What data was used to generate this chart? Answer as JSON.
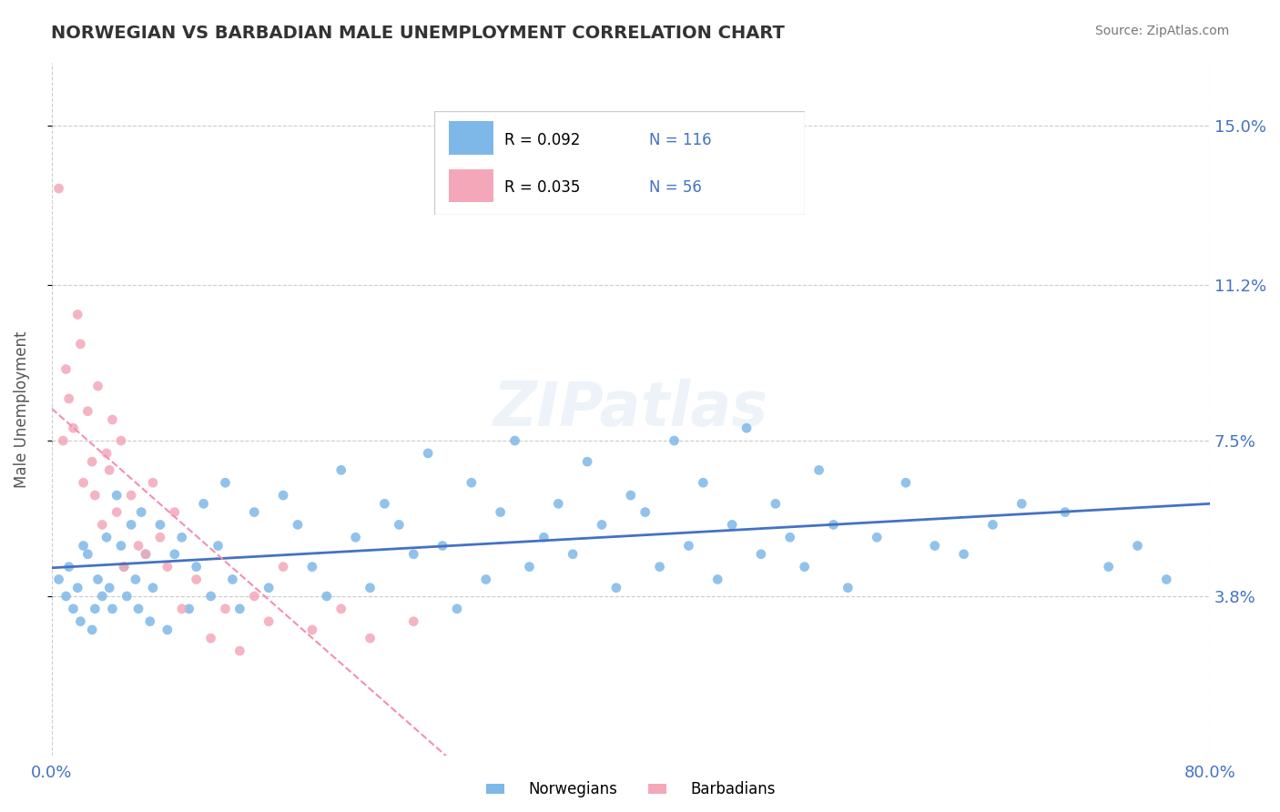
{
  "title": "NORWEGIAN VS BARBADIAN MALE UNEMPLOYMENT CORRELATION CHART",
  "source": "Source: ZipAtlas.com",
  "xlabel": "",
  "ylabel": "Male Unemployment",
  "xlim": [
    0.0,
    80.0
  ],
  "ylim": [
    0.0,
    16.5
  ],
  "yticks": [
    3.8,
    7.5,
    11.2,
    15.0
  ],
  "xticks": [
    0.0,
    20.0,
    40.0,
    60.0,
    80.0
  ],
  "xtick_labels": [
    "0.0%",
    "",
    "",
    "",
    "80.0%"
  ],
  "ytick_labels": [
    "3.8%",
    "7.5%",
    "11.2%",
    "15.0%"
  ],
  "norwegian_color": "#7EB8E8",
  "barbadian_color": "#F4A7B9",
  "trend_norwegian_color": "#4472C4",
  "trend_barbadian_color": "#F48FB1",
  "legend_r1": "R = 0.092",
  "legend_n1": "N = 116",
  "legend_r2": "R = 0.035",
  "legend_n2": "N = 56",
  "legend_label1": "Norwegians",
  "legend_label2": "Barbadians",
  "r_value_color": "#4472C4",
  "background_color": "#FFFFFF",
  "grid_color": "#CCCCCC",
  "watermark": "ZIPatlas",
  "norwegian_x": [
    0.5,
    1.0,
    1.2,
    1.5,
    1.8,
    2.0,
    2.2,
    2.5,
    2.8,
    3.0,
    3.2,
    3.5,
    3.8,
    4.0,
    4.2,
    4.5,
    4.8,
    5.0,
    5.2,
    5.5,
    5.8,
    6.0,
    6.2,
    6.5,
    6.8,
    7.0,
    7.5,
    8.0,
    8.5,
    9.0,
    9.5,
    10.0,
    10.5,
    11.0,
    11.5,
    12.0,
    12.5,
    13.0,
    14.0,
    15.0,
    16.0,
    17.0,
    18.0,
    19.0,
    20.0,
    21.0,
    22.0,
    23.0,
    24.0,
    25.0,
    26.0,
    27.0,
    28.0,
    29.0,
    30.0,
    31.0,
    32.0,
    33.0,
    34.0,
    35.0,
    36.0,
    37.0,
    38.0,
    39.0,
    40.0,
    41.0,
    42.0,
    43.0,
    44.0,
    45.0,
    46.0,
    47.0,
    48.0,
    49.0,
    50.0,
    51.0,
    52.0,
    53.0,
    54.0,
    55.0,
    57.0,
    59.0,
    61.0,
    63.0,
    65.0,
    67.0,
    70.0,
    73.0,
    75.0,
    77.0
  ],
  "norwegian_y": [
    4.2,
    3.8,
    4.5,
    3.5,
    4.0,
    3.2,
    5.0,
    4.8,
    3.0,
    3.5,
    4.2,
    3.8,
    5.2,
    4.0,
    3.5,
    6.2,
    5.0,
    4.5,
    3.8,
    5.5,
    4.2,
    3.5,
    5.8,
    4.8,
    3.2,
    4.0,
    5.5,
    3.0,
    4.8,
    5.2,
    3.5,
    4.5,
    6.0,
    3.8,
    5.0,
    6.5,
    4.2,
    3.5,
    5.8,
    4.0,
    6.2,
    5.5,
    4.5,
    3.8,
    6.8,
    5.2,
    4.0,
    6.0,
    5.5,
    4.8,
    7.2,
    5.0,
    3.5,
    6.5,
    4.2,
    5.8,
    7.5,
    4.5,
    5.2,
    6.0,
    4.8,
    7.0,
    5.5,
    4.0,
    6.2,
    5.8,
    4.5,
    7.5,
    5.0,
    6.5,
    4.2,
    5.5,
    7.8,
    4.8,
    6.0,
    5.2,
    4.5,
    6.8,
    5.5,
    4.0,
    5.2,
    6.5,
    5.0,
    4.8,
    5.5,
    6.0,
    5.8,
    4.5,
    5.0,
    4.2
  ],
  "barbadian_x": [
    0.5,
    0.8,
    1.0,
    1.2,
    1.5,
    1.8,
    2.0,
    2.2,
    2.5,
    2.8,
    3.0,
    3.2,
    3.5,
    3.8,
    4.0,
    4.2,
    4.5,
    4.8,
    5.0,
    5.5,
    6.0,
    6.5,
    7.0,
    7.5,
    8.0,
    8.5,
    9.0,
    10.0,
    11.0,
    12.0,
    13.0,
    14.0,
    15.0,
    16.0,
    18.0,
    20.0,
    22.0,
    25.0
  ],
  "barbadian_y": [
    13.5,
    7.5,
    9.2,
    8.5,
    7.8,
    10.5,
    9.8,
    6.5,
    8.2,
    7.0,
    6.2,
    8.8,
    5.5,
    7.2,
    6.8,
    8.0,
    5.8,
    7.5,
    4.5,
    6.2,
    5.0,
    4.8,
    6.5,
    5.2,
    4.5,
    5.8,
    3.5,
    4.2,
    2.8,
    3.5,
    2.5,
    3.8,
    3.2,
    4.5,
    3.0,
    3.5,
    2.8,
    3.2
  ]
}
